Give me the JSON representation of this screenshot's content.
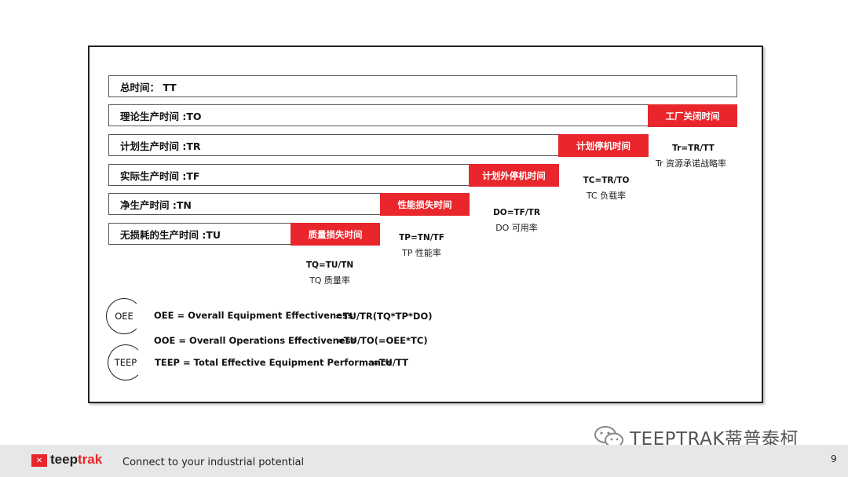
{
  "bars": [
    {
      "label": "总时间： TT"
    },
    {
      "label": "理论生产时间 :TO"
    },
    {
      "label": "计划生产时间 :TR"
    },
    {
      "label": "实际生产时间 :TF"
    },
    {
      "label": "净生产时间 :TN"
    },
    {
      "label": "无损耗的生产时间 :TU"
    }
  ],
  "losses": [
    {
      "label": "工厂关闭时间"
    },
    {
      "label": "计划停机时间"
    },
    {
      "label": "计划外停机时间"
    },
    {
      "label": "性能损失时间"
    },
    {
      "label": "质量损失时间"
    }
  ],
  "metrics": [
    {
      "formula": "Tr=TR/TT",
      "desc": "Tr 资源承诺战略率"
    },
    {
      "formula": "TC=TR/TO",
      "desc": "TC 负载率"
    },
    {
      "formula": "DO=TF/TR",
      "desc": "DO 可用率"
    },
    {
      "formula": "TP=TN/TF",
      "desc": "TP 性能率"
    },
    {
      "formula": "TQ=TU/TN",
      "desc": "TQ 质量率"
    }
  ],
  "indicators": {
    "oee_badge": "OEE",
    "teep_badge": "TEEP",
    "oee_def": "OEE = Overall Equipment Effectiveness",
    "oee_formula": "=TU/TR(TQ*TP*DO)",
    "ooe_def": "OOE = Overall Operations Effectiveness",
    "ooe_formula": "=TU/TO(=OEE*TC)",
    "teep_def": "TEEP = Total Effective Equipment Performance",
    "teep_formula": "=TU/TT"
  },
  "footer": {
    "logo_main": "teep",
    "logo_accent": "trak",
    "tagline": "Connect to your industrial potential",
    "page_number": "9"
  },
  "watermark": {
    "text": "TEEPTRAK蒂普泰柯"
  },
  "colors": {
    "accent": "#e8262b"
  }
}
